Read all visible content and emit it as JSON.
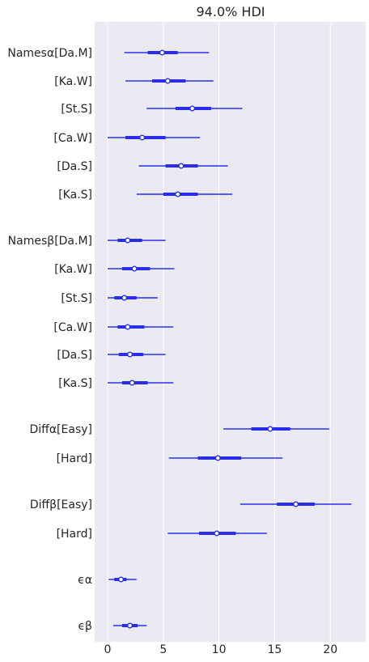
{
  "chart_data": {
    "type": "forest",
    "title": "94.0% HDI",
    "xlabel": "",
    "ylabel": "",
    "xlim": [
      -1,
      22.5
    ],
    "xticks": [
      0,
      5,
      10,
      15,
      20
    ],
    "grid": true,
    "colors": {
      "background": "#eaeaf2",
      "grid": "#ffffff",
      "line": "#2a2eec",
      "point_fill": "#ffffff"
    },
    "rows": [
      {
        "label": "Namesα[Da.M]",
        "hdi": [
          1.5,
          9.1
        ],
        "iqr": [
          3.6,
          6.3
        ],
        "point": 4.9
      },
      {
        "label": "[Ka.W]",
        "hdi": [
          1.6,
          9.5
        ],
        "iqr": [
          4.0,
          7.0
        ],
        "point": 5.4
      },
      {
        "label": "[St.S]",
        "hdi": [
          3.5,
          12.1
        ],
        "iqr": [
          6.1,
          9.3
        ],
        "point": 7.6
      },
      {
        "label": "[Ca.W]",
        "hdi": [
          0.0,
          8.3
        ],
        "iqr": [
          1.6,
          5.2
        ],
        "point": 3.1
      },
      {
        "label": "[Da.S]",
        "hdi": [
          2.8,
          10.8
        ],
        "iqr": [
          5.2,
          8.1
        ],
        "point": 6.6
      },
      {
        "label": "[Ka.S]",
        "hdi": [
          2.6,
          11.2
        ],
        "iqr": [
          5.0,
          8.1
        ],
        "point": 6.3
      },
      {
        "label": "Namesβ[Da.M]",
        "hdi": [
          0.0,
          5.2
        ],
        "iqr": [
          0.9,
          3.1
        ],
        "point": 1.8
      },
      {
        "label": "[Ka.W]",
        "hdi": [
          0.0,
          6.0
        ],
        "iqr": [
          1.3,
          3.8
        ],
        "point": 2.4
      },
      {
        "label": "[St.S]",
        "hdi": [
          0.0,
          4.5
        ],
        "iqr": [
          0.6,
          2.6
        ],
        "point": 1.5
      },
      {
        "label": "[Ca.W]",
        "hdi": [
          0.0,
          5.9
        ],
        "iqr": [
          0.9,
          3.3
        ],
        "point": 1.8
      },
      {
        "label": "[Da.S]",
        "hdi": [
          0.0,
          5.2
        ],
        "iqr": [
          1.0,
          3.2
        ],
        "point": 2.0
      },
      {
        "label": "[Ka.S]",
        "hdi": [
          0.0,
          5.9
        ],
        "iqr": [
          1.3,
          3.6
        ],
        "point": 2.2
      },
      {
        "label": "Diffα[Easy]",
        "hdi": [
          10.4,
          19.9
        ],
        "iqr": [
          12.9,
          16.4
        ],
        "point": 14.6
      },
      {
        "label": "[Hard]",
        "hdi": [
          5.5,
          15.7
        ],
        "iqr": [
          8.1,
          12.0
        ],
        "point": 9.9
      },
      {
        "label": "Diffβ[Easy]",
        "hdi": [
          11.9,
          21.9
        ],
        "iqr": [
          15.2,
          18.6
        ],
        "point": 16.9
      },
      {
        "label": "[Hard]",
        "hdi": [
          5.4,
          14.3
        ],
        "iqr": [
          8.2,
          11.5
        ],
        "point": 9.8
      },
      {
        "label": "ϵα",
        "hdi": [
          0.1,
          2.6
        ],
        "iqr": [
          0.6,
          1.7
        ],
        "point": 1.2
      },
      {
        "label": "ϵβ",
        "hdi": [
          0.5,
          3.5
        ],
        "iqr": [
          1.3,
          2.7
        ],
        "point": 2.0
      }
    ]
  }
}
